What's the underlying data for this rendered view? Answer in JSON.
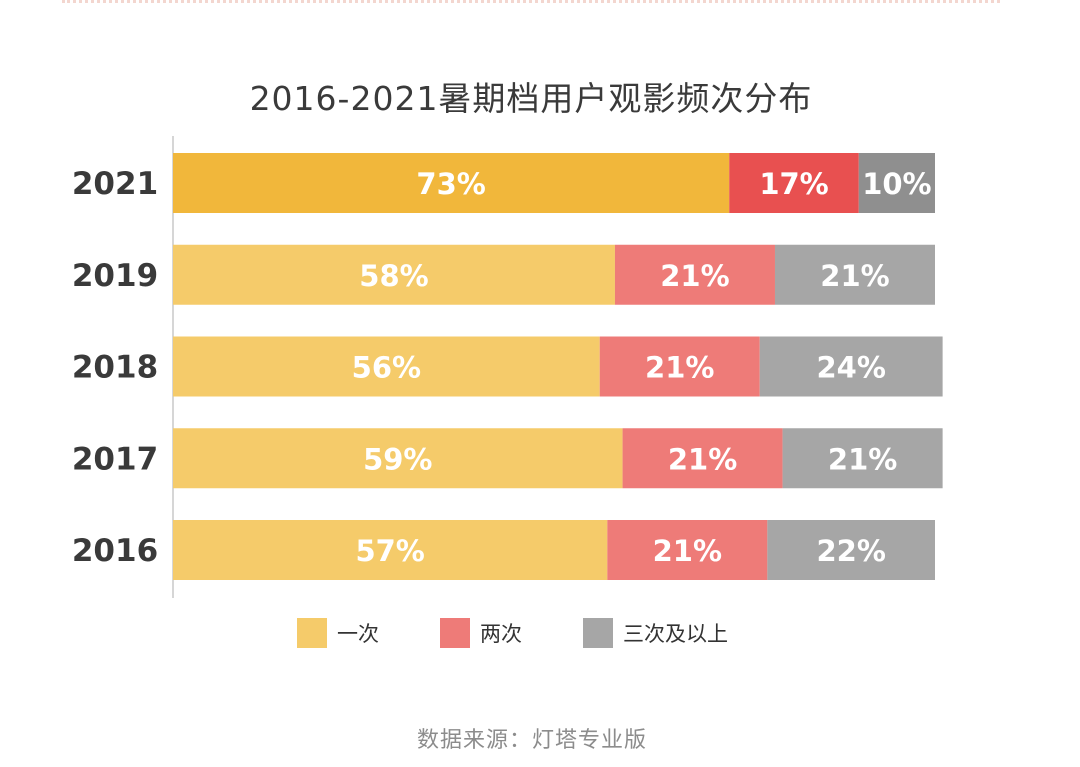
{
  "colors": {
    "series": [
      "#f5cb6a",
      "#ee7b78",
      "#a6a6a6"
    ],
    "highlight": [
      "#f1b73b",
      "#e85050",
      "#8f8f8f"
    ],
    "axis": "#c8c8c8",
    "tick_text": "#3a3a3a"
  },
  "chart_data": {
    "type": "bar",
    "orientation": "horizontal",
    "stacked": true,
    "title": "2016-2021暑期档用户观影频次分布",
    "categories": [
      "2021",
      "2019",
      "2018",
      "2017",
      "2016"
    ],
    "highlight_category": "2021",
    "series": [
      {
        "name": "一次",
        "values": [
          73,
          58,
          56,
          59,
          57
        ]
      },
      {
        "name": "两次",
        "values": [
          17,
          21,
          21,
          21,
          21
        ]
      },
      {
        "name": "三次及以上",
        "values": [
          10,
          21,
          24,
          21,
          22
        ]
      }
    ],
    "value_suffix": "%",
    "xlim": [
      0,
      100
    ],
    "legend": "bottom",
    "source": "数据来源：灯塔专业版"
  }
}
